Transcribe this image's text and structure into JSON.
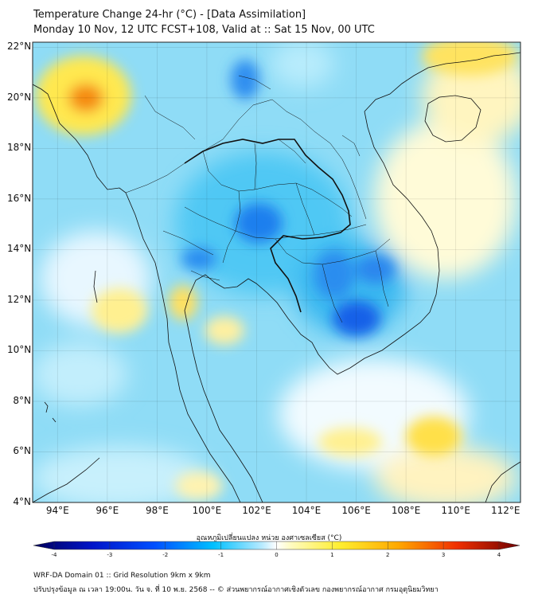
{
  "title": {
    "line1": "Temperature Change 24-hr (°C) - [Data Assimilation]",
    "line2": "Monday 10 Nov, 12 UTC FCST+108, Valid at :: Sat 15 Nov, 00 UTC"
  },
  "axes": {
    "lat_labels": [
      "22°N",
      "20°N",
      "18°N",
      "16°N",
      "14°N",
      "12°N",
      "10°N",
      "8°N",
      "6°N",
      "4°N"
    ],
    "lon_labels": [
      "94°E",
      "96°E",
      "98°E",
      "100°E",
      "102°E",
      "104°E",
      "106°E",
      "108°E",
      "110°E",
      "112°E"
    ],
    "lat_range": [
      4,
      22.2
    ],
    "lon_range": [
      93,
      112.6
    ]
  },
  "colorbar": {
    "label": "อุณหภูมิเปลี่ยนแปลง หน่วย องศาเซลเซียส (°C)",
    "ticks": [
      "-4",
      "-3",
      "-2",
      "-1",
      "0",
      "1",
      "2",
      "3",
      "4"
    ],
    "range": [
      -4,
      4
    ]
  },
  "footer": {
    "line1": "WRF-DA Domain 01 :: Grid Resolution 9km x 9km",
    "line2": "ปรับปรุงข้อมูล ณ เวลา 19:00น. วัน จ. ที่ 10 พ.ย. 2568 -- © ส่วนพยากรณ์อากาศเชิงตัวเลข กองพยากรณ์อากาศ กรมอุตุนิยมวิทยา"
  },
  "map_field": {
    "features": [
      {
        "name": "warm anomaly Myanmar",
        "lon": 95.2,
        "lat": 20.0,
        "value": 2.3
      },
      {
        "name": "cool anomaly N Laos",
        "lon": 101.4,
        "lat": 20.8,
        "value": -1.8
      },
      {
        "name": "cool anomaly NE Thailand",
        "lon": 102.0,
        "lat": 15.0,
        "value": -2.0
      },
      {
        "name": "cool anomaly central Thailand",
        "lon": 100.2,
        "lat": 13.6,
        "value": -1.5
      },
      {
        "name": "cool anomaly Cambodia",
        "lon": 106.0,
        "lat": 11.2,
        "value": -2.5
      },
      {
        "name": "cool anomaly E Cambodia",
        "lon": 106.8,
        "lat": 13.2,
        "value": -1.6
      },
      {
        "name": "warm anomaly Hainan",
        "lon": 110.5,
        "lat": 21.8,
        "value": 1.1
      },
      {
        "name": "warm anomaly S China Sea",
        "lon": 109.3,
        "lat": 6.6,
        "value": 1.4
      },
      {
        "name": "warm anomaly Andaman Sea",
        "lon": 96.0,
        "lat": 11.0,
        "value": 0.8
      },
      {
        "name": "warm anomaly Gulf of Thailand",
        "lon": 100.5,
        "lat": 10.8,
        "value": 0.7
      },
      {
        "name": "warm anomaly E Vietnam coast",
        "lon": 110.5,
        "lat": 16.0,
        "value": 0.7
      }
    ]
  }
}
